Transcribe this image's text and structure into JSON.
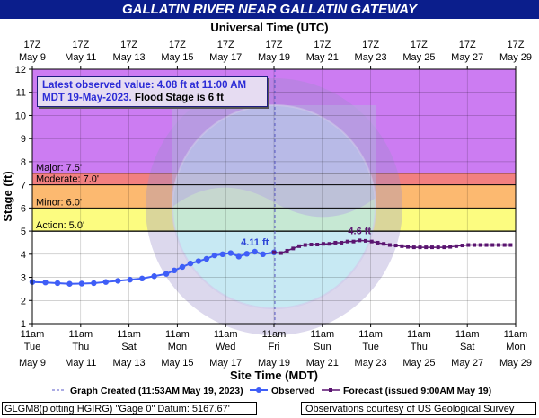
{
  "header": {
    "title": "GALLATIN RIVER NEAR GALLATIN GATEWAY",
    "top_axis_label": "Universal Time (UTC)"
  },
  "latest_observed": {
    "line1_prefix": "Latest observed value:",
    "line1_value": "4.08 ft at 11:00 AM",
    "line2": "MDT 19-May-2023.",
    "flood_stage": "Flood Stage is 6 ft"
  },
  "footer": {
    "gauge_info": "GLGM8(plotting HGIRG) \"Gage 0\" Datum:  5167.67'",
    "credit": "Observations courtesy of US Geological Survey"
  },
  "legend": {
    "graph_created": "Graph Created (11:53AM May 19, 2023)",
    "observed": "Observed",
    "forecast": "Forecast (issued 9:00AM May 19)"
  },
  "colors": {
    "major": "#cc7cf2",
    "moderate": "#f28080",
    "minor": "#fcb970",
    "action": "#fcfc80",
    "observed": "#3f5ef7",
    "forecast": "#5a1470",
    "title_bg": "#0b1e8c"
  },
  "chart_data": {
    "type": "line",
    "title": "GALLATIN RIVER NEAR GALLATIN GATEWAY",
    "xlabel": "Site Time (MDT)",
    "x2label": "Universal Time (UTC)",
    "ylabel": "Stage (ft)",
    "ylim": [
      1,
      12
    ],
    "yticks": [
      1,
      2,
      3,
      4,
      5,
      6,
      7,
      8,
      9,
      10,
      11,
      12
    ],
    "xlim": [
      "2023-05-09 11:00",
      "2023-05-29 11:00"
    ],
    "grid": true,
    "x_ticks_bottom": [
      {
        "time": "11am",
        "day": "Tue",
        "date": "May 9"
      },
      {
        "time": "11am",
        "day": "Thu",
        "date": "May 11"
      },
      {
        "time": "11am",
        "day": "Sat",
        "date": "May 13"
      },
      {
        "time": "11am",
        "day": "Mon",
        "date": "May 15"
      },
      {
        "time": "11am",
        "day": "Wed",
        "date": "May 17"
      },
      {
        "time": "11am",
        "day": "Fri",
        "date": "May 19"
      },
      {
        "time": "11am",
        "day": "Sun",
        "date": "May 21"
      },
      {
        "time": "11am",
        "day": "Tue",
        "date": "May 23"
      },
      {
        "time": "11am",
        "day": "Thu",
        "date": "May 25"
      },
      {
        "time": "11am",
        "day": "Sat",
        "date": "May 27"
      },
      {
        "time": "11am",
        "day": "Mon",
        "date": "May 29"
      }
    ],
    "x_ticks_top": [
      {
        "time": "17Z",
        "date": "May  9"
      },
      {
        "time": "17Z",
        "date": "May 11"
      },
      {
        "time": "17Z",
        "date": "May 13"
      },
      {
        "time": "17Z",
        "date": "May 15"
      },
      {
        "time": "17Z",
        "date": "May 17"
      },
      {
        "time": "17Z",
        "date": "May 19"
      },
      {
        "time": "17Z",
        "date": "May 21"
      },
      {
        "time": "17Z",
        "date": "May 23"
      },
      {
        "time": "17Z",
        "date": "May 25"
      },
      {
        "time": "17Z",
        "date": "May 27"
      },
      {
        "time": "17Z",
        "date": "May 29"
      }
    ],
    "flood_categories": [
      {
        "name": "Major",
        "label": "Major: 7.5'",
        "from": 7.5,
        "to": 12,
        "color": "#cc7cf2"
      },
      {
        "name": "Moderate",
        "label": "Moderate: 7.0'",
        "from": 7.0,
        "to": 7.5,
        "color": "#f28080"
      },
      {
        "name": "Minor",
        "label": "Minor: 6.0'",
        "from": 6.0,
        "to": 7.0,
        "color": "#fcb970"
      },
      {
        "name": "Action",
        "label": "Action: 5.0'",
        "from": 5.0,
        "to": 6.0,
        "color": "#fcfc80"
      }
    ],
    "graph_created": "2023-05-19 11:53",
    "series": [
      {
        "name": "Observed",
        "color": "#3f5ef7",
        "x": [
          "2023-05-09 11:00",
          "2023-05-10 00:00",
          "2023-05-10 12:00",
          "2023-05-11 00:00",
          "2023-05-11 12:00",
          "2023-05-12 00:00",
          "2023-05-12 12:00",
          "2023-05-13 00:00",
          "2023-05-13 12:00",
          "2023-05-14 00:00",
          "2023-05-14 12:00",
          "2023-05-15 00:00",
          "2023-05-15 08:00",
          "2023-05-15 16:00",
          "2023-05-16 00:00",
          "2023-05-16 08:00",
          "2023-05-16 16:00",
          "2023-05-17 00:00",
          "2023-05-17 08:00",
          "2023-05-17 16:00",
          "2023-05-18 00:00",
          "2023-05-18 08:00",
          "2023-05-18 16:00",
          "2023-05-19 00:00",
          "2023-05-19 11:00"
        ],
        "y": [
          2.8,
          2.78,
          2.75,
          2.72,
          2.73,
          2.75,
          2.8,
          2.85,
          2.9,
          2.95,
          3.05,
          3.15,
          3.3,
          3.45,
          3.6,
          3.7,
          3.8,
          3.95,
          4.0,
          4.05,
          3.9,
          4.02,
          4.11,
          4.0,
          4.08
        ]
      },
      {
        "name": "Forecast",
        "color": "#5a1470",
        "x": [
          "2023-05-19 11:00",
          "2023-05-19 18:00",
          "2023-05-20 00:00",
          "2023-05-20 06:00",
          "2023-05-20 12:00",
          "2023-05-20 18:00",
          "2023-05-21 00:00",
          "2023-05-21 06:00",
          "2023-05-21 12:00",
          "2023-05-21 18:00",
          "2023-05-22 00:00",
          "2023-05-22 06:00",
          "2023-05-22 12:00",
          "2023-05-22 18:00",
          "2023-05-23 00:00",
          "2023-05-23 06:00",
          "2023-05-23 12:00",
          "2023-05-23 18:00",
          "2023-05-24 00:00",
          "2023-05-24 06:00",
          "2023-05-24 12:00",
          "2023-05-24 18:00",
          "2023-05-25 00:00",
          "2023-05-25 06:00",
          "2023-05-25 12:00",
          "2023-05-25 18:00",
          "2023-05-26 00:00",
          "2023-05-26 06:00",
          "2023-05-26 12:00",
          "2023-05-26 18:00",
          "2023-05-27 00:00",
          "2023-05-27 06:00",
          "2023-05-27 12:00",
          "2023-05-27 18:00",
          "2023-05-28 00:00",
          "2023-05-28 06:00",
          "2023-05-28 12:00",
          "2023-05-28 18:00",
          "2023-05-29 00:00",
          "2023-05-29 06:00"
        ],
        "y": [
          4.08,
          4.05,
          4.15,
          4.25,
          4.35,
          4.4,
          4.42,
          4.42,
          4.45,
          4.45,
          4.5,
          4.5,
          4.55,
          4.55,
          4.6,
          4.58,
          4.55,
          4.5,
          4.45,
          4.4,
          4.38,
          4.35,
          4.32,
          4.3,
          4.3,
          4.3,
          4.3,
          4.3,
          4.3,
          4.32,
          4.35,
          4.38,
          4.4,
          4.4,
          4.4,
          4.4,
          4.4,
          4.4,
          4.4,
          4.4
        ]
      }
    ],
    "annotations": [
      {
        "text": "4.11 ft",
        "x": "2023-05-18 16:00",
        "y": 4.11,
        "color": "#2b43d6"
      },
      {
        "text": "4.6 ft",
        "x": "2023-05-23 00:00",
        "y": 4.6,
        "color": "#5a1470"
      }
    ]
  }
}
